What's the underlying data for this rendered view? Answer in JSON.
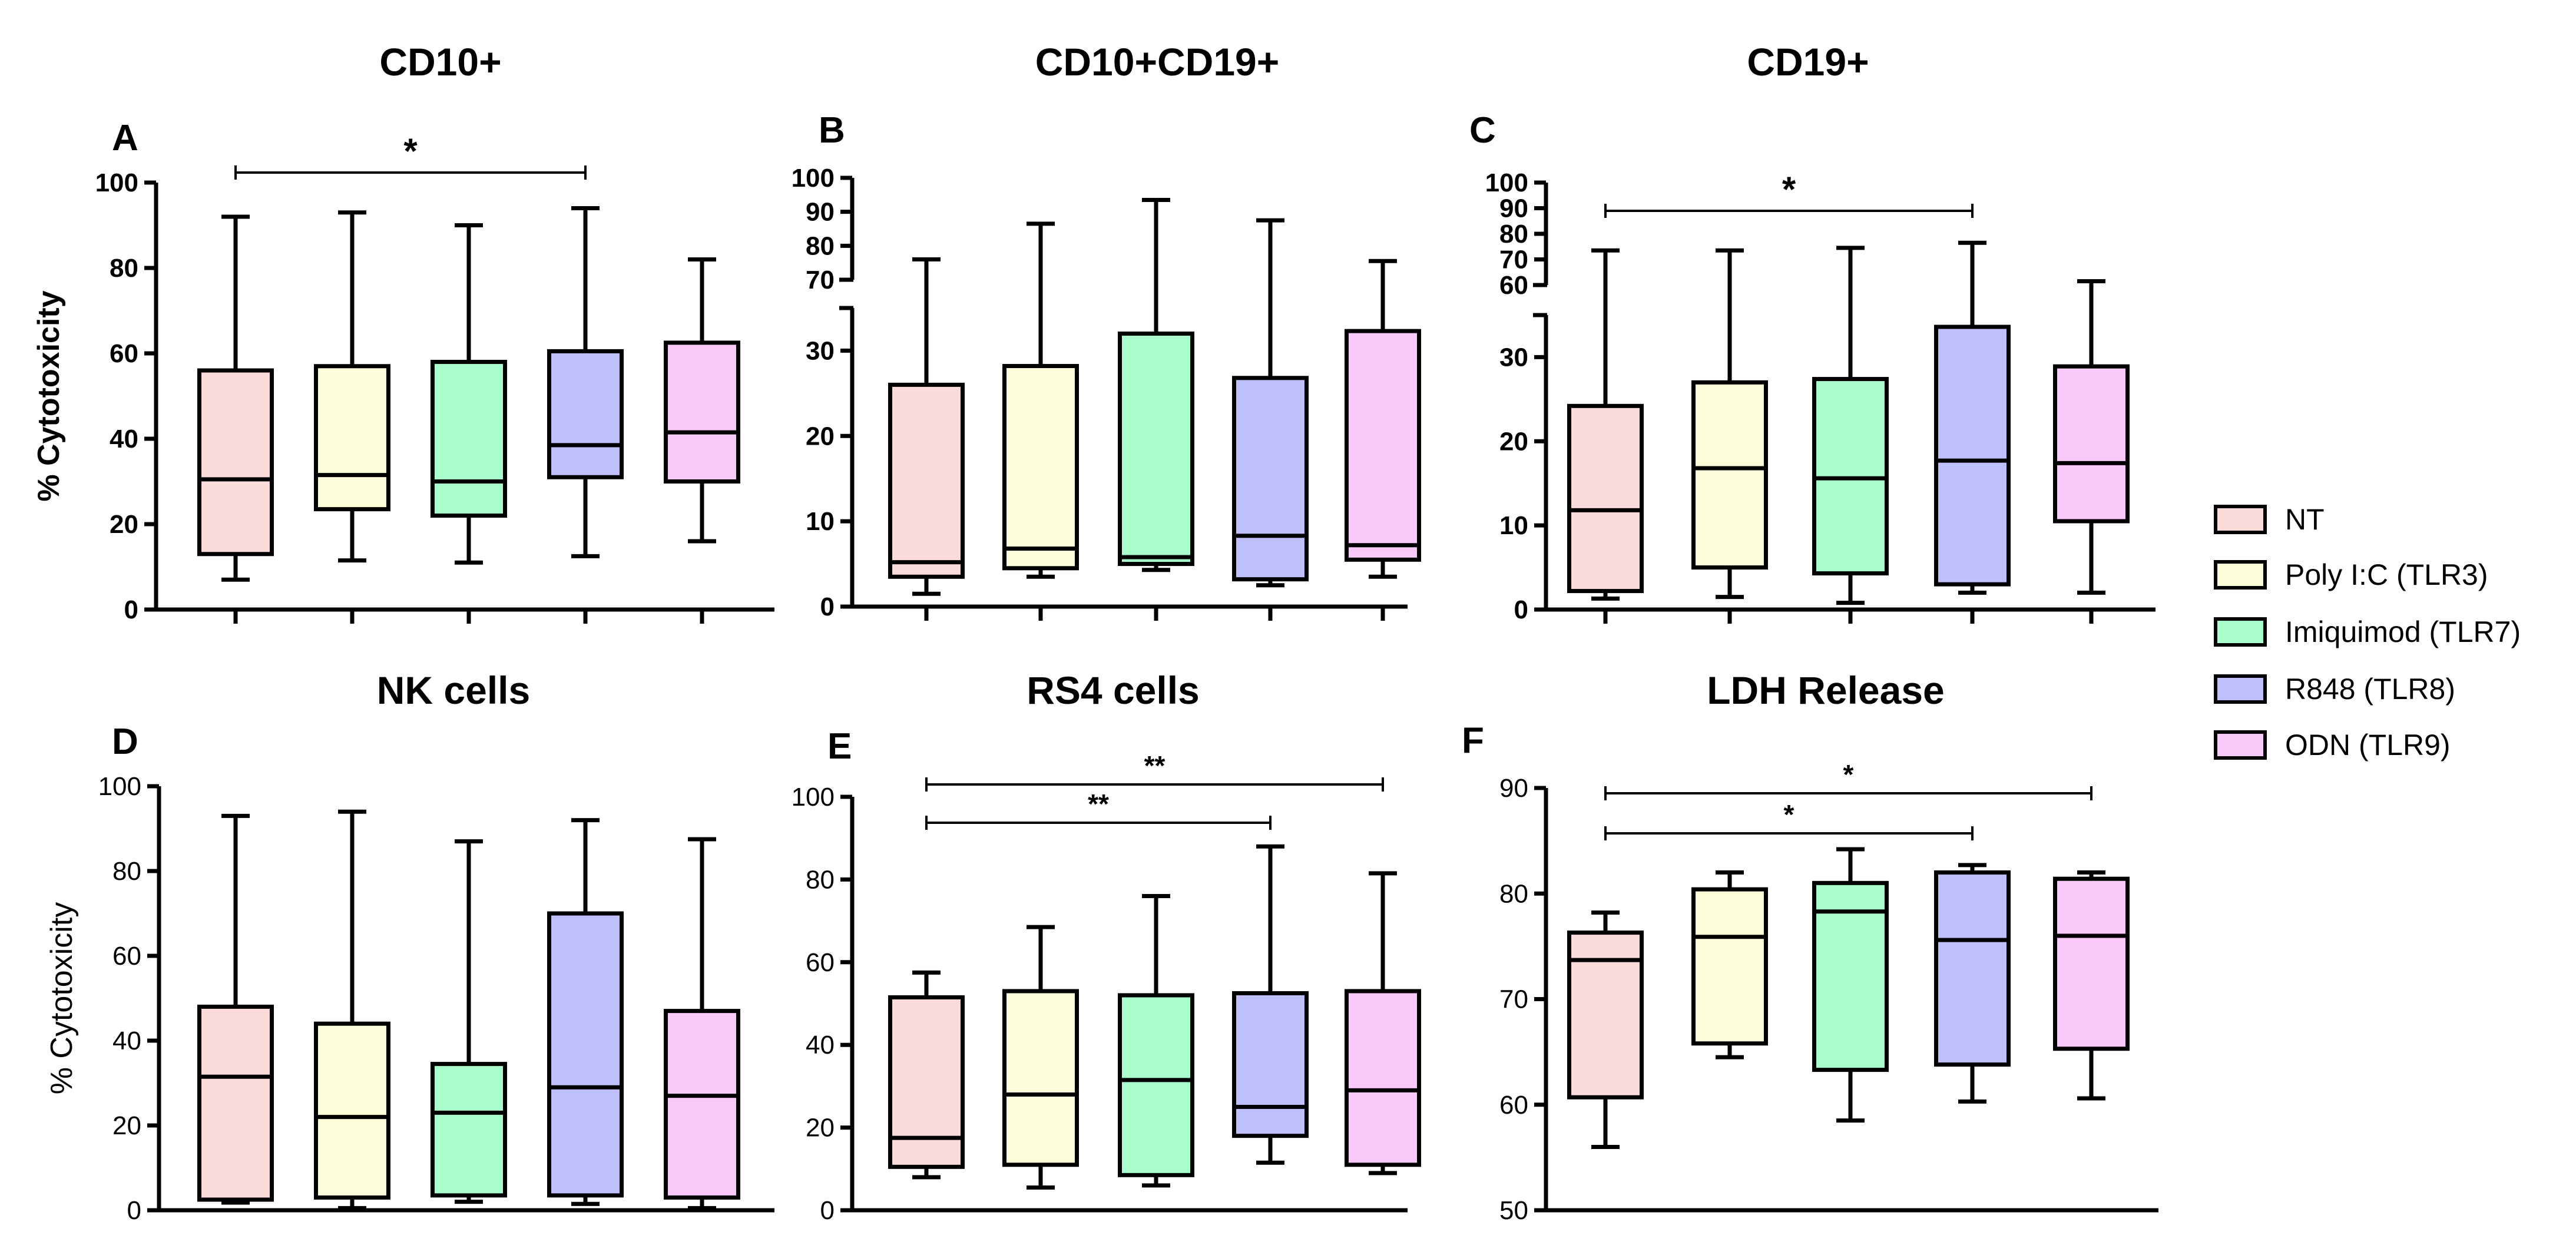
{
  "legend": [
    {
      "name": "NT",
      "color": "#fbdada"
    },
    {
      "name": "Poly I:C (TLR3)",
      "color": "#fdfdd9"
    },
    {
      "name": "Imiquimod (TLR7)",
      "color": "#a9fdcc"
    },
    {
      "name": "R848 (TLR8)",
      "color": "#bfbffd"
    },
    {
      "name": "ODN (TLR9)",
      "color": "#f8c8f8"
    }
  ],
  "chart_data": [
    {
      "id": "A",
      "type": "box",
      "title": "CD10+",
      "ylabel": "% Cytotoxicity",
      "ylim": [
        0,
        100
      ],
      "yticks": [
        0,
        20,
        40,
        60,
        80,
        100
      ],
      "boxes": [
        {
          "min": 7,
          "q1": 13,
          "median": 30.5,
          "q3": 56,
          "max": 92
        },
        {
          "min": 11.5,
          "q1": 23.5,
          "median": 31.5,
          "q3": 57,
          "max": 93
        },
        {
          "min": 11,
          "q1": 22,
          "median": 30,
          "q3": 58,
          "max": 90
        },
        {
          "min": 12.5,
          "q1": 31,
          "median": 38.5,
          "q3": 60.5,
          "max": 94
        },
        {
          "min": 16,
          "q1": 30,
          "median": 41.5,
          "q3": 62.5,
          "max": 82
        }
      ],
      "significance": [
        {
          "from": 0,
          "to": 3,
          "label": "*"
        }
      ]
    },
    {
      "id": "B",
      "type": "box",
      "title": "CD10+CD19+",
      "ylabel": "",
      "ylim": [
        0,
        100
      ],
      "axis_break": [
        35,
        70
      ],
      "yticks": [
        0,
        10,
        20,
        30,
        70,
        80,
        90,
        100
      ],
      "boxes": [
        {
          "min": 1.5,
          "q1": 3.5,
          "median": 5.2,
          "q3": 26,
          "max": 76
        },
        {
          "min": 3.5,
          "q1": 4.5,
          "median": 6.8,
          "q3": 28.2,
          "max": 86.5
        },
        {
          "min": 4.3,
          "q1": 5,
          "median": 5.8,
          "q3": 32,
          "max": 93.5
        },
        {
          "min": 2.5,
          "q1": 3.2,
          "median": 8.3,
          "q3": 26.8,
          "max": 87.5
        },
        {
          "min": 3.5,
          "q1": 5.5,
          "median": 7.2,
          "q3": 32.3,
          "max": 75.5
        }
      ],
      "significance": []
    },
    {
      "id": "C",
      "type": "box",
      "title": "CD19+",
      "ylabel": "",
      "ylim": [
        0,
        100
      ],
      "axis_break": [
        35,
        60
      ],
      "yticks": [
        0,
        10,
        20,
        30,
        60,
        70,
        80,
        90,
        100
      ],
      "boxes": [
        {
          "min": 1.3,
          "q1": 2.2,
          "median": 11.8,
          "q3": 24.2,
          "max": 73.5
        },
        {
          "min": 1.5,
          "q1": 5,
          "median": 16.8,
          "q3": 27,
          "max": 73.5
        },
        {
          "min": 0.8,
          "q1": 4.3,
          "median": 15.6,
          "q3": 27.4,
          "max": 74.5
        },
        {
          "min": 2,
          "q1": 3,
          "median": 17.7,
          "q3": 33.6,
          "max": 76.5
        },
        {
          "min": 2,
          "q1": 10.5,
          "median": 17.4,
          "q3": 28.9,
          "max": 61.5
        }
      ],
      "significance": [
        {
          "from": 0,
          "to": 3,
          "label": "*"
        }
      ]
    },
    {
      "id": "D",
      "type": "box",
      "title": "NK cells",
      "ylabel": "% Cytotoxicity",
      "ylim": [
        0,
        100
      ],
      "yticks": [
        0,
        20,
        40,
        60,
        80,
        100
      ],
      "boxes": [
        {
          "min": 1.8,
          "q1": 2.5,
          "median": 31.5,
          "q3": 48,
          "max": 93
        },
        {
          "min": 0.5,
          "q1": 3,
          "median": 22,
          "q3": 44,
          "max": 94
        },
        {
          "min": 2,
          "q1": 3.5,
          "median": 23,
          "q3": 34.5,
          "max": 87
        },
        {
          "min": 1.5,
          "q1": 3.5,
          "median": 29,
          "q3": 70,
          "max": 92
        },
        {
          "min": 0.5,
          "q1": 3,
          "median": 27,
          "q3": 47,
          "max": 87.5
        }
      ],
      "significance": []
    },
    {
      "id": "E",
      "type": "box",
      "title": "RS4 cells",
      "ylabel": "",
      "ylim": [
        0,
        100
      ],
      "yticks": [
        0,
        20,
        40,
        60,
        80,
        100
      ],
      "boxes": [
        {
          "min": 8,
          "q1": 10.5,
          "median": 17.5,
          "q3": 51.5,
          "max": 57.5
        },
        {
          "min": 5.5,
          "q1": 11,
          "median": 28,
          "q3": 53,
          "max": 68.5
        },
        {
          "min": 6,
          "q1": 8.5,
          "median": 31.5,
          "q3": 52,
          "max": 76
        },
        {
          "min": 11.5,
          "q1": 18,
          "median": 25,
          "q3": 52.5,
          "max": 88
        },
        {
          "min": 9,
          "q1": 11,
          "median": 29,
          "q3": 53,
          "max": 81.5
        }
      ],
      "significance": [
        {
          "from": 0,
          "to": 3,
          "label": "**"
        },
        {
          "from": 0,
          "to": 4,
          "label": "**"
        }
      ]
    },
    {
      "id": "F",
      "type": "box",
      "title": "LDH Release",
      "ylabel": "",
      "ylim": [
        50,
        90
      ],
      "yticks": [
        50,
        60,
        70,
        80,
        90
      ],
      "boxes": [
        {
          "min": 56,
          "q1": 60.7,
          "median": 73.7,
          "q3": 76.3,
          "max": 78.2
        },
        {
          "min": 64.5,
          "q1": 65.8,
          "median": 75.9,
          "q3": 80.4,
          "max": 82
        },
        {
          "min": 58.5,
          "q1": 63.3,
          "median": 78.3,
          "q3": 81,
          "max": 84.2
        },
        {
          "min": 60.3,
          "q1": 63.8,
          "median": 75.6,
          "q3": 82,
          "max": 82.7
        },
        {
          "min": 60.6,
          "q1": 65.3,
          "median": 76,
          "q3": 81.4,
          "max": 82
        }
      ],
      "significance": [
        {
          "from": 0,
          "to": 3,
          "label": "*"
        },
        {
          "from": 0,
          "to": 4,
          "label": "*"
        }
      ]
    }
  ]
}
